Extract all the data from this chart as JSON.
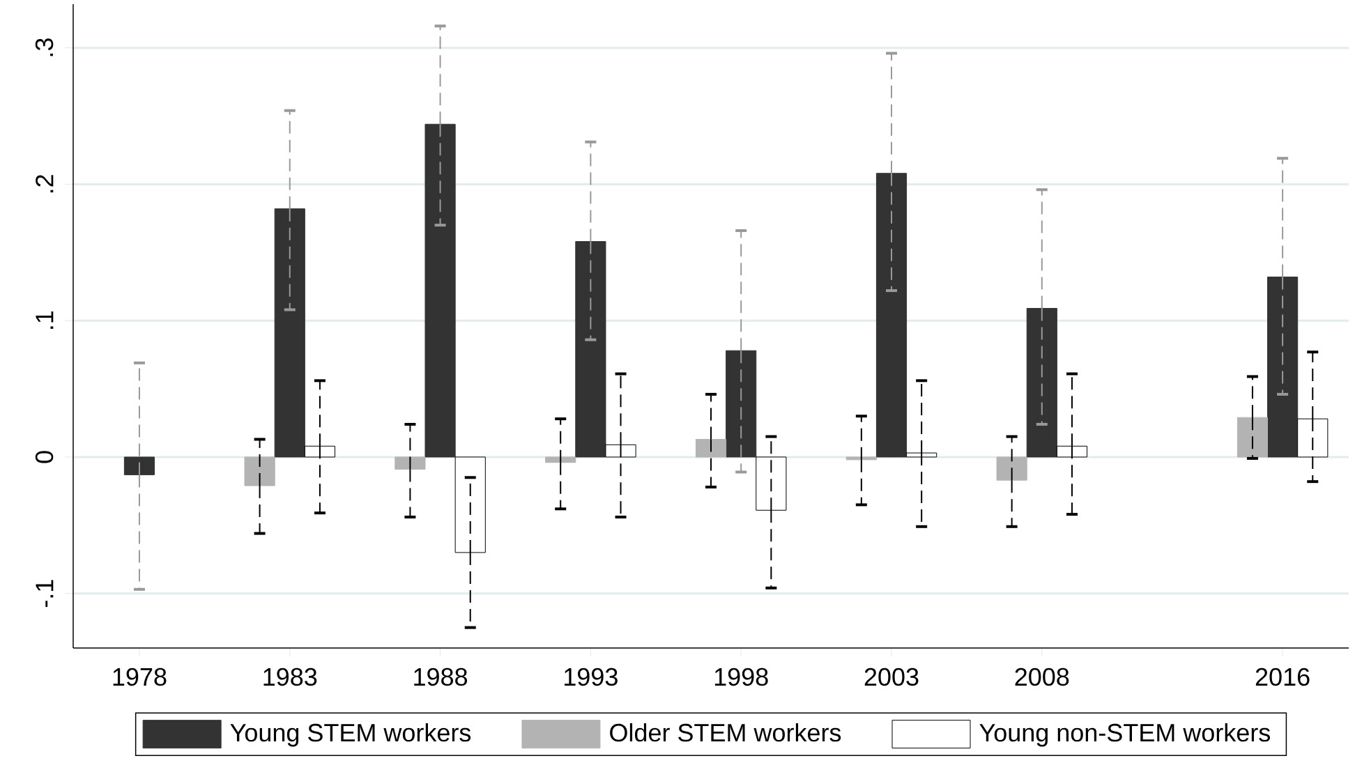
{
  "chart_data": {
    "type": "bar",
    "xlim": [
      1975.8,
      2018.2
    ],
    "ylim": [
      -0.14,
      0.332
    ],
    "xticks": [
      1978,
      1983,
      1988,
      1993,
      1998,
      2003,
      2008,
      2016
    ],
    "yticks": [
      {
        "value": -0.1,
        "label": "-.1"
      },
      0,
      {
        "value": 0.1,
        "label": ".1"
      },
      {
        "value": 0.2,
        "label": ".2"
      },
      {
        "value": 0.3,
        "label": ".3"
      }
    ],
    "grid": "y",
    "legend": "bottom",
    "series": [
      {
        "name": "Young STEM workers",
        "color": "#333333",
        "x": [
          1978,
          1983,
          1988,
          1993,
          1998,
          2003,
          2008,
          2016
        ],
        "values": [
          -0.013,
          0.182,
          0.244,
          0.158,
          0.078,
          0.208,
          0.109,
          0.132
        ],
        "errors": [
          [
            -0.097,
            0.069
          ],
          [
            0.108,
            0.254
          ],
          [
            0.17,
            0.316
          ],
          [
            0.086,
            0.231
          ],
          [
            -0.011,
            0.166
          ],
          [
            0.122,
            0.296
          ],
          [
            0.024,
            0.196
          ],
          [
            0.046,
            0.219
          ]
        ]
      },
      {
        "name": "Older STEM workers",
        "color": "#b3b3b3",
        "x": [
          1982,
          1987,
          1992,
          1997,
          2002,
          2007,
          2015
        ],
        "values": [
          -0.021,
          -0.009,
          -0.004,
          0.013,
          -0.002,
          -0.017,
          0.029
        ],
        "errors": [
          [
            -0.056,
            0.013
          ],
          [
            -0.044,
            0.024
          ],
          [
            -0.038,
            0.028
          ],
          [
            -0.022,
            0.046
          ],
          [
            -0.035,
            0.03
          ],
          [
            -0.051,
            0.015
          ],
          [
            -0.001,
            0.059
          ]
        ]
      },
      {
        "name": "Young non-STEM workers",
        "color": "#ffffff",
        "x": [
          1984,
          1989,
          1994,
          1999,
          2004,
          2009,
          2017
        ],
        "values": [
          0.008,
          -0.07,
          0.009,
          -0.039,
          0.003,
          0.008,
          0.028
        ],
        "errors": [
          [
            -0.041,
            0.056
          ],
          [
            -0.125,
            -0.015
          ],
          [
            -0.044,
            0.061
          ],
          [
            -0.096,
            0.015
          ],
          [
            -0.051,
            0.056
          ],
          [
            -0.042,
            0.061
          ],
          [
            -0.018,
            0.077
          ]
        ]
      }
    ]
  }
}
